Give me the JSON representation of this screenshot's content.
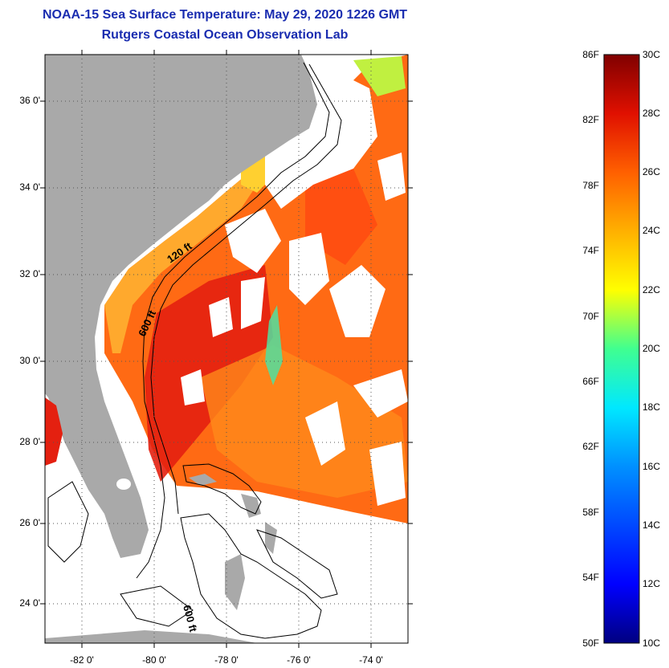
{
  "title": {
    "line1": "NOAA-15 Sea Surface Temperature:  May 29, 2020 1226 GMT",
    "line2": "Rutgers Coastal Ocean Observation Lab"
  },
  "lat_ticks": [
    {
      "label": "36 0'",
      "value": 36
    },
    {
      "label": "34 0'",
      "value": 34
    },
    {
      "label": "32 0'",
      "value": 32
    },
    {
      "label": "30 0'",
      "value": 30
    },
    {
      "label": "28 0'",
      "value": 28
    },
    {
      "label": "26 0'",
      "value": 26
    },
    {
      "label": "24 0'",
      "value": 24
    }
  ],
  "lon_ticks": [
    {
      "label": "-82 0'",
      "value": -82
    },
    {
      "label": "-80 0'",
      "value": -80
    },
    {
      "label": "-78 0'",
      "value": -78
    },
    {
      "label": "-76 0'",
      "value": -76
    },
    {
      "label": "-74 0'",
      "value": -74
    }
  ],
  "contours": [
    {
      "label": "120 ft"
    },
    {
      "label": "600 ft"
    },
    {
      "label": "600 ft"
    }
  ],
  "colorbar": {
    "fahrenheit": [
      "86F",
      "82F",
      "78F",
      "74F",
      "70F",
      "66F",
      "62F",
      "58F",
      "54F",
      "50F"
    ],
    "celsius": [
      "30C",
      "28C",
      "26C",
      "24C",
      "22C",
      "20C",
      "18C",
      "16C",
      "14C",
      "12C",
      "10C"
    ],
    "colors": [
      "#000080",
      "#0000ff",
      "#0080ff",
      "#00e0ff",
      "#40ff90",
      "#c0ff20",
      "#ffff00",
      "#ffc000",
      "#ff8000",
      "#ff2000",
      "#c00000",
      "#800000"
    ]
  },
  "colors": {
    "land": "#a9a9a9",
    "title": "#1a2db0",
    "sst_warm": "#ff5a10",
    "sst_hot": "#e02010",
    "sst_mild": "#ff9a20"
  }
}
